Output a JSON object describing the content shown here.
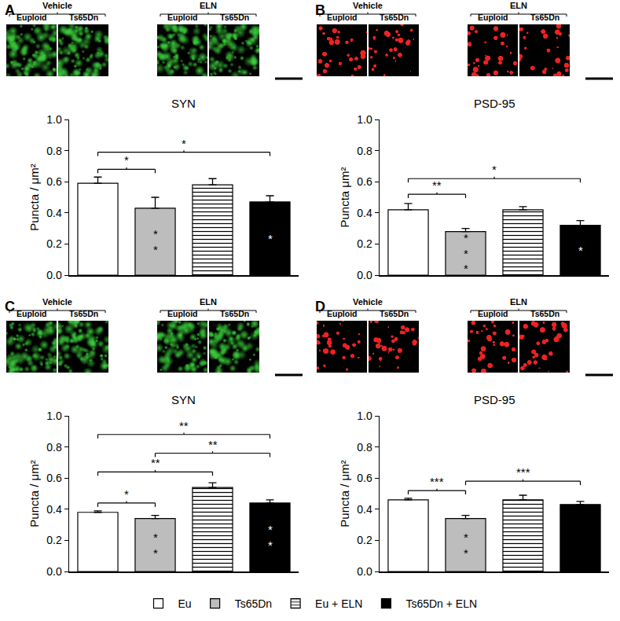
{
  "chart_data": [
    {
      "type": "bar",
      "panel": "A",
      "title": "SYN",
      "ylabel": "Puncta / μm²",
      "images": {
        "color": "#3cd23c",
        "groups": [
          {
            "label": "Vehicle",
            "items": [
              "Euploid",
              "Ts65Dn"
            ]
          },
          {
            "label": "ELN",
            "items": [
              "Euploid",
              "Ts65Dn"
            ]
          }
        ]
      },
      "series": [
        {
          "name": "Eu",
          "color": "#ffffff",
          "values": [
            0.59
          ],
          "errors": [
            0.04
          ]
        },
        {
          "name": "Ts65Dn",
          "color": "#bdbdbd",
          "values": [
            0.43
          ],
          "errors": [
            0.07
          ],
          "inner_label": "**"
        },
        {
          "name": "Eu + ELN",
          "color": "#ffffff",
          "marker": "hatched",
          "values": [
            0.58
          ],
          "errors": [
            0.04
          ]
        },
        {
          "name": "Ts65Dn + ELN",
          "color": "#000000",
          "values": [
            0.47
          ],
          "errors": [
            0.04
          ],
          "inner_label": "*"
        }
      ],
      "comparisons": [
        {
          "between": [
            "Eu",
            "Ts65Dn"
          ],
          "y": 0.68,
          "label": "*"
        },
        {
          "between": [
            "Eu",
            "Ts65Dn + ELN"
          ],
          "y": 0.79,
          "label": "*"
        }
      ],
      "ylim": [
        0,
        1
      ],
      "yticks": [
        {
          "value": 0,
          "label": "0.0"
        },
        0.2,
        0.4,
        0.6,
        0.8,
        {
          "value": 1,
          "label": "1.0"
        }
      ],
      "grid": false,
      "tick_labels": "y"
    },
    {
      "type": "bar",
      "panel": "B",
      "title": "PSD-95",
      "ylabel": "Puncta μm²",
      "images": {
        "color": "#ee2222",
        "groups": [
          {
            "label": "Vehicle",
            "items": [
              "Euploid",
              "Ts65Dn"
            ]
          },
          {
            "label": "ELN",
            "items": [
              "Euploid",
              "Ts65Dn"
            ]
          }
        ]
      },
      "series": [
        {
          "name": "Eu",
          "color": "#ffffff",
          "values": [
            0.42
          ],
          "errors": [
            0.04
          ]
        },
        {
          "name": "Ts65Dn",
          "color": "#bdbdbd",
          "values": [
            0.28
          ],
          "errors": [
            0.02
          ],
          "inner_label": "***"
        },
        {
          "name": "Eu + ELN",
          "color": "#ffffff",
          "marker": "hatched",
          "values": [
            0.42
          ],
          "errors": [
            0.02
          ]
        },
        {
          "name": "Ts65Dn + ELN",
          "color": "#000000",
          "values": [
            0.32
          ],
          "errors": [
            0.03
          ],
          "inner_label": "*"
        }
      ],
      "comparisons": [
        {
          "between": [
            "Eu",
            "Ts65Dn"
          ],
          "y": 0.52,
          "label": "**"
        },
        {
          "between": [
            "Eu",
            "Ts65Dn + ELN"
          ],
          "y": 0.62,
          "label": "*"
        }
      ],
      "ylim": [
        0,
        1
      ],
      "yticks": [
        {
          "value": 0,
          "label": "0.0"
        },
        0.2,
        0.4,
        0.6,
        0.8,
        {
          "value": 1,
          "label": "1.0"
        }
      ],
      "grid": false,
      "tick_labels": "y"
    },
    {
      "type": "bar",
      "panel": "C",
      "title": "SYN",
      "ylabel": "Puncta / μm²",
      "images": {
        "color": "#3cd23c",
        "groups": [
          {
            "label": "Vehicle",
            "items": [
              "Euploid",
              "Ts65Dn"
            ]
          },
          {
            "label": "ELN",
            "items": [
              "Euploid",
              "Ts65Dn"
            ]
          }
        ]
      },
      "series": [
        {
          "name": "Eu",
          "color": "#ffffff",
          "values": [
            0.38
          ],
          "errors": [
            0.01
          ]
        },
        {
          "name": "Ts65Dn",
          "color": "#bdbdbd",
          "values": [
            0.34
          ],
          "errors": [
            0.02
          ],
          "inner_label": "**"
        },
        {
          "name": "Eu + ELN",
          "color": "#ffffff",
          "marker": "hatched",
          "values": [
            0.54
          ],
          "errors": [
            0.03
          ]
        },
        {
          "name": "Ts65Dn + ELN",
          "color": "#000000",
          "values": [
            0.44
          ],
          "errors": [
            0.02
          ],
          "inner_label": "**"
        }
      ],
      "comparisons": [
        {
          "between": [
            "Eu",
            "Ts65Dn"
          ],
          "y": 0.44,
          "label": "*"
        },
        {
          "between": [
            "Eu",
            "Eu + ELN"
          ],
          "y": 0.64,
          "label": "**"
        },
        {
          "between": [
            "Ts65Dn",
            "Ts65Dn + ELN"
          ],
          "y": 0.76,
          "label": "**"
        },
        {
          "between": [
            "Eu",
            "Ts65Dn + ELN"
          ],
          "y": 0.88,
          "label": "**"
        }
      ],
      "ylim": [
        0,
        1
      ],
      "yticks": [
        {
          "value": 0,
          "label": "0.0"
        },
        0.2,
        0.4,
        0.6,
        0.8,
        {
          "value": 1,
          "label": "1.0"
        }
      ],
      "grid": false,
      "tick_labels": "y"
    },
    {
      "type": "bar",
      "panel": "D",
      "title": "PSD-95",
      "ylabel": "Puncta / μm²",
      "images": {
        "color": "#ee2222",
        "groups": [
          {
            "label": "Vehicle",
            "items": [
              "Euploid",
              "Ts65Dn"
            ]
          },
          {
            "label": "ELN",
            "items": [
              "Euploid",
              "Ts65Dn"
            ]
          }
        ]
      },
      "series": [
        {
          "name": "Eu",
          "color": "#ffffff",
          "values": [
            0.46
          ],
          "errors": [
            0.01
          ]
        },
        {
          "name": "Ts65Dn",
          "color": "#bdbdbd",
          "values": [
            0.34
          ],
          "errors": [
            0.02
          ],
          "inner_label": "**"
        },
        {
          "name": "Eu + ELN",
          "color": "#ffffff",
          "marker": "hatched",
          "values": [
            0.46
          ],
          "errors": [
            0.03
          ]
        },
        {
          "name": "Ts65Dn + ELN",
          "color": "#000000",
          "values": [
            0.43
          ],
          "errors": [
            0.02
          ]
        }
      ],
      "comparisons": [
        {
          "between": [
            "Eu",
            "Ts65Dn"
          ],
          "y": 0.52,
          "label": "***"
        },
        {
          "between": [
            "Ts65Dn",
            "Ts65Dn + ELN"
          ],
          "y": 0.58,
          "label": "***"
        }
      ],
      "ylim": [
        0,
        1
      ],
      "yticks": [
        {
          "value": 0,
          "label": "0.0"
        },
        0.2,
        0.4,
        0.6,
        0.8,
        {
          "value": 1,
          "label": "1.0"
        }
      ],
      "grid": false,
      "tick_labels": "y",
      "legend": "bottom"
    }
  ]
}
